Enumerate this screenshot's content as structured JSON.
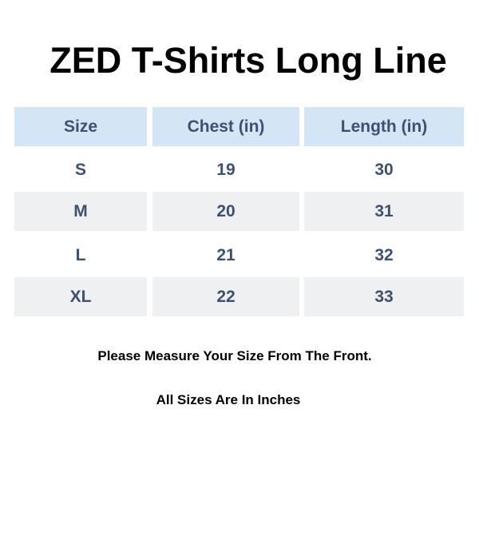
{
  "title": "ZED T-Shirts Long Line",
  "table": {
    "headers": [
      "Size",
      "Chest (in)",
      "Length (in)"
    ],
    "rows": [
      [
        "S",
        "19",
        "30"
      ],
      [
        "M",
        "20",
        "31"
      ],
      [
        "L",
        "21",
        "32"
      ],
      [
        "XL",
        "22",
        "33"
      ]
    ]
  },
  "notes": [
    "Please Measure Your Size From The Front.",
    "All Sizes Are In Inches"
  ],
  "colors": {
    "header_bg": "#d4e5f5",
    "alt_row_bg": "#eff0f2",
    "cell_text": "#3d5070"
  }
}
